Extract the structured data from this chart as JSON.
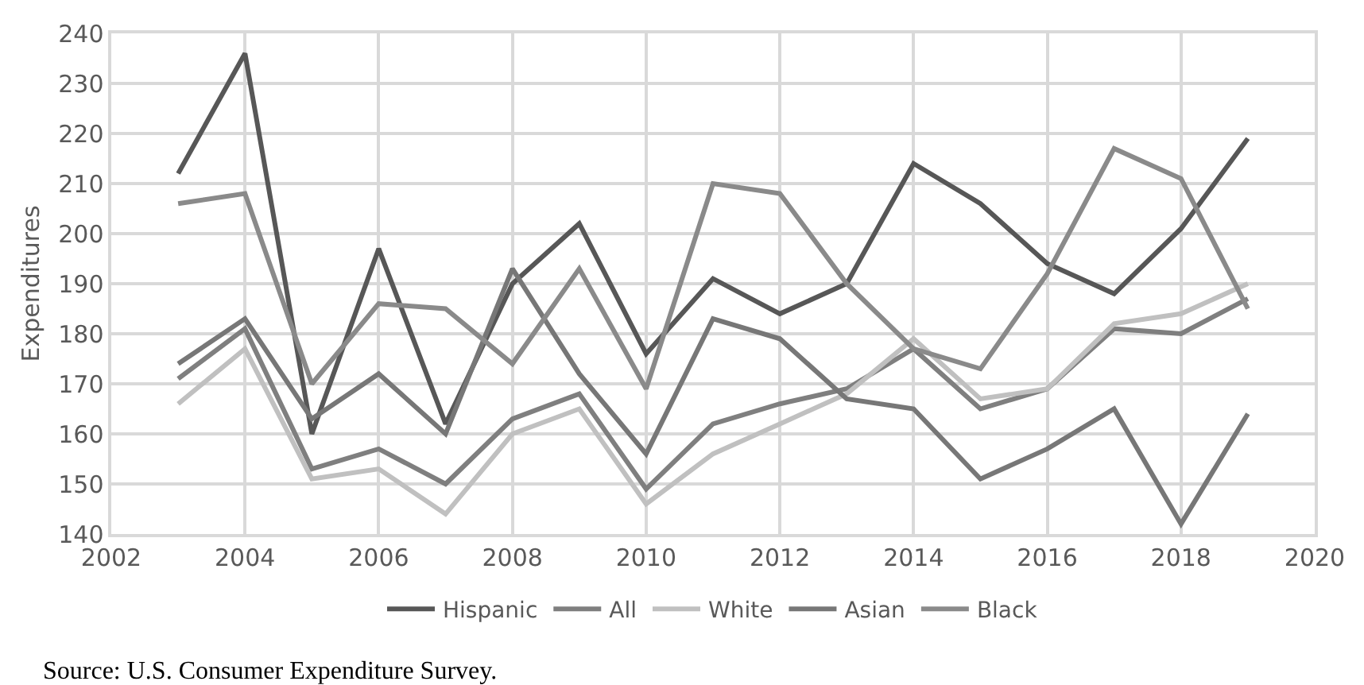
{
  "chart_data": {
    "type": "line",
    "ylabel": "Expenditures",
    "x": [
      2003,
      2004,
      2005,
      2006,
      2007,
      2008,
      2009,
      2010,
      2011,
      2012,
      2013,
      2014,
      2015,
      2016,
      2017,
      2018,
      2019
    ],
    "series": [
      {
        "name": "Hispanic",
        "color": "#575757",
        "values": [
          212,
          236,
          160,
          197,
          162,
          190,
          202,
          176,
          191,
          184,
          190,
          214,
          206,
          194,
          188,
          201,
          219
        ]
      },
      {
        "name": "All",
        "color": "#7f7f7f",
        "values": [
          171,
          181,
          153,
          157,
          150,
          163,
          168,
          149,
          162,
          166,
          169,
          177,
          165,
          169,
          181,
          180,
          187
        ]
      },
      {
        "name": "White",
        "color": "#c0c0c0",
        "values": [
          166,
          177,
          151,
          153,
          144,
          160,
          165,
          146,
          156,
          162,
          168,
          179,
          167,
          169,
          182,
          184,
          190
        ]
      },
      {
        "name": "Asian",
        "color": "#777777",
        "values": [
          174,
          183,
          163,
          172,
          160,
          193,
          172,
          156,
          183,
          179,
          167,
          165,
          151,
          157,
          165,
          142,
          164
        ]
      },
      {
        "name": "Black",
        "color": "#8a8a8a",
        "values": [
          206,
          208,
          170,
          186,
          185,
          174,
          193,
          169,
          210,
          208,
          190,
          177,
          173,
          192,
          217,
          211,
          185
        ]
      }
    ],
    "xlim": [
      2002,
      2020
    ],
    "xticks": [
      2002,
      2004,
      2006,
      2008,
      2010,
      2012,
      2014,
      2016,
      2018,
      2020
    ],
    "ylim": [
      140,
      240
    ],
    "yticks": [
      140,
      150,
      160,
      170,
      180,
      190,
      200,
      210,
      220,
      230,
      240
    ],
    "grid": true,
    "legend": "bottom",
    "marker": "none",
    "line_style": "solid",
    "annotations": [
      "Source: U.S. Consumer Expenditure Survey."
    ]
  }
}
